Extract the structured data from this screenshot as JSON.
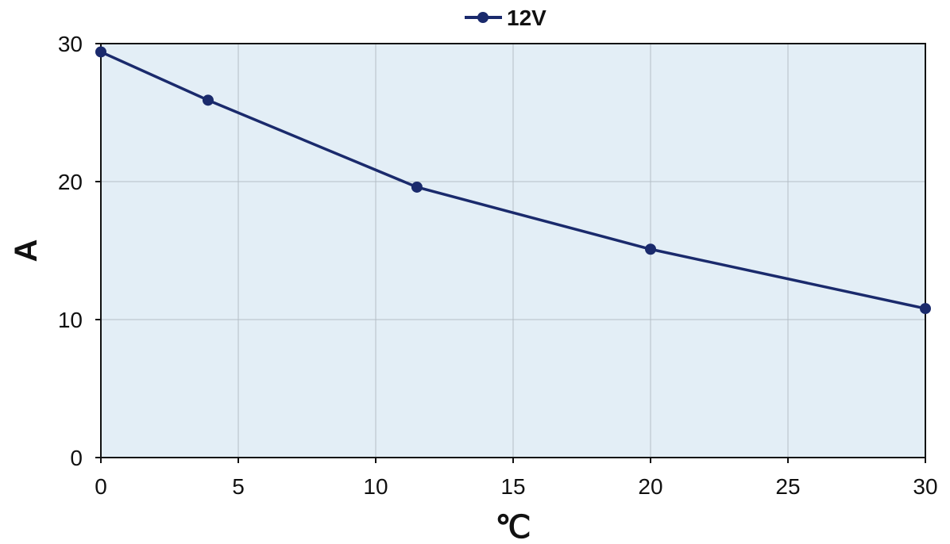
{
  "chart_data": {
    "type": "line",
    "xlabel": "℃",
    "ylabel": "A",
    "xlim": [
      0,
      30
    ],
    "ylim": [
      0,
      30
    ],
    "x_ticks": [
      0,
      5,
      10,
      15,
      20,
      25,
      30
    ],
    "y_ticks": [
      0,
      10,
      20,
      30
    ],
    "grid": true,
    "legend_position": "top-center",
    "plot_background": "#e3eef6",
    "series": [
      {
        "name": "12V",
        "color": "#1a2a6c",
        "marker": "circle",
        "x": [
          0,
          3.9,
          11.5,
          20,
          30
        ],
        "y": [
          29.4,
          25.9,
          19.6,
          15.1,
          10.8
        ]
      }
    ]
  }
}
